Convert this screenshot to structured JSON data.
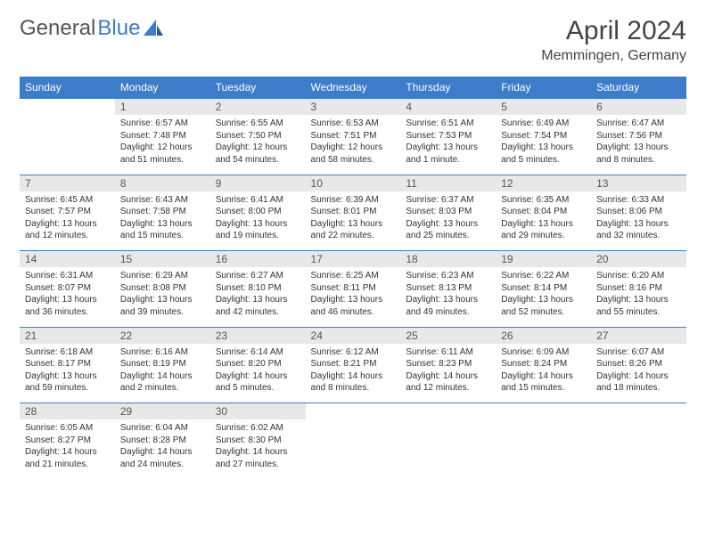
{
  "brand": {
    "part1": "General",
    "part2": "Blue"
  },
  "title": "April 2024",
  "location": "Memmingen, Germany",
  "colors": {
    "header_bg": "#3d7cc9",
    "header_text": "#ffffff",
    "daynum_bg": "#e8e8e8",
    "text": "#333333",
    "rule": "#3d7cc9"
  },
  "weekdays": [
    "Sunday",
    "Monday",
    "Tuesday",
    "Wednesday",
    "Thursday",
    "Friday",
    "Saturday"
  ],
  "weeks": [
    [
      {
        "n": "",
        "sr": "",
        "ss": "",
        "dl": ""
      },
      {
        "n": "1",
        "sr": "Sunrise: 6:57 AM",
        "ss": "Sunset: 7:48 PM",
        "dl": "Daylight: 12 hours and 51 minutes."
      },
      {
        "n": "2",
        "sr": "Sunrise: 6:55 AM",
        "ss": "Sunset: 7:50 PM",
        "dl": "Daylight: 12 hours and 54 minutes."
      },
      {
        "n": "3",
        "sr": "Sunrise: 6:53 AM",
        "ss": "Sunset: 7:51 PM",
        "dl": "Daylight: 12 hours and 58 minutes."
      },
      {
        "n": "4",
        "sr": "Sunrise: 6:51 AM",
        "ss": "Sunset: 7:53 PM",
        "dl": "Daylight: 13 hours and 1 minute."
      },
      {
        "n": "5",
        "sr": "Sunrise: 6:49 AM",
        "ss": "Sunset: 7:54 PM",
        "dl": "Daylight: 13 hours and 5 minutes."
      },
      {
        "n": "6",
        "sr": "Sunrise: 6:47 AM",
        "ss": "Sunset: 7:56 PM",
        "dl": "Daylight: 13 hours and 8 minutes."
      }
    ],
    [
      {
        "n": "7",
        "sr": "Sunrise: 6:45 AM",
        "ss": "Sunset: 7:57 PM",
        "dl": "Daylight: 13 hours and 12 minutes."
      },
      {
        "n": "8",
        "sr": "Sunrise: 6:43 AM",
        "ss": "Sunset: 7:58 PM",
        "dl": "Daylight: 13 hours and 15 minutes."
      },
      {
        "n": "9",
        "sr": "Sunrise: 6:41 AM",
        "ss": "Sunset: 8:00 PM",
        "dl": "Daylight: 13 hours and 19 minutes."
      },
      {
        "n": "10",
        "sr": "Sunrise: 6:39 AM",
        "ss": "Sunset: 8:01 PM",
        "dl": "Daylight: 13 hours and 22 minutes."
      },
      {
        "n": "11",
        "sr": "Sunrise: 6:37 AM",
        "ss": "Sunset: 8:03 PM",
        "dl": "Daylight: 13 hours and 25 minutes."
      },
      {
        "n": "12",
        "sr": "Sunrise: 6:35 AM",
        "ss": "Sunset: 8:04 PM",
        "dl": "Daylight: 13 hours and 29 minutes."
      },
      {
        "n": "13",
        "sr": "Sunrise: 6:33 AM",
        "ss": "Sunset: 8:06 PM",
        "dl": "Daylight: 13 hours and 32 minutes."
      }
    ],
    [
      {
        "n": "14",
        "sr": "Sunrise: 6:31 AM",
        "ss": "Sunset: 8:07 PM",
        "dl": "Daylight: 13 hours and 36 minutes."
      },
      {
        "n": "15",
        "sr": "Sunrise: 6:29 AM",
        "ss": "Sunset: 8:08 PM",
        "dl": "Daylight: 13 hours and 39 minutes."
      },
      {
        "n": "16",
        "sr": "Sunrise: 6:27 AM",
        "ss": "Sunset: 8:10 PM",
        "dl": "Daylight: 13 hours and 42 minutes."
      },
      {
        "n": "17",
        "sr": "Sunrise: 6:25 AM",
        "ss": "Sunset: 8:11 PM",
        "dl": "Daylight: 13 hours and 46 minutes."
      },
      {
        "n": "18",
        "sr": "Sunrise: 6:23 AM",
        "ss": "Sunset: 8:13 PM",
        "dl": "Daylight: 13 hours and 49 minutes."
      },
      {
        "n": "19",
        "sr": "Sunrise: 6:22 AM",
        "ss": "Sunset: 8:14 PM",
        "dl": "Daylight: 13 hours and 52 minutes."
      },
      {
        "n": "20",
        "sr": "Sunrise: 6:20 AM",
        "ss": "Sunset: 8:16 PM",
        "dl": "Daylight: 13 hours and 55 minutes."
      }
    ],
    [
      {
        "n": "21",
        "sr": "Sunrise: 6:18 AM",
        "ss": "Sunset: 8:17 PM",
        "dl": "Daylight: 13 hours and 59 minutes."
      },
      {
        "n": "22",
        "sr": "Sunrise: 6:16 AM",
        "ss": "Sunset: 8:19 PM",
        "dl": "Daylight: 14 hours and 2 minutes."
      },
      {
        "n": "23",
        "sr": "Sunrise: 6:14 AM",
        "ss": "Sunset: 8:20 PM",
        "dl": "Daylight: 14 hours and 5 minutes."
      },
      {
        "n": "24",
        "sr": "Sunrise: 6:12 AM",
        "ss": "Sunset: 8:21 PM",
        "dl": "Daylight: 14 hours and 8 minutes."
      },
      {
        "n": "25",
        "sr": "Sunrise: 6:11 AM",
        "ss": "Sunset: 8:23 PM",
        "dl": "Daylight: 14 hours and 12 minutes."
      },
      {
        "n": "26",
        "sr": "Sunrise: 6:09 AM",
        "ss": "Sunset: 8:24 PM",
        "dl": "Daylight: 14 hours and 15 minutes."
      },
      {
        "n": "27",
        "sr": "Sunrise: 6:07 AM",
        "ss": "Sunset: 8:26 PM",
        "dl": "Daylight: 14 hours and 18 minutes."
      }
    ],
    [
      {
        "n": "28",
        "sr": "Sunrise: 6:05 AM",
        "ss": "Sunset: 8:27 PM",
        "dl": "Daylight: 14 hours and 21 minutes."
      },
      {
        "n": "29",
        "sr": "Sunrise: 6:04 AM",
        "ss": "Sunset: 8:28 PM",
        "dl": "Daylight: 14 hours and 24 minutes."
      },
      {
        "n": "30",
        "sr": "Sunrise: 6:02 AM",
        "ss": "Sunset: 8:30 PM",
        "dl": "Daylight: 14 hours and 27 minutes."
      },
      {
        "n": "",
        "sr": "",
        "ss": "",
        "dl": ""
      },
      {
        "n": "",
        "sr": "",
        "ss": "",
        "dl": ""
      },
      {
        "n": "",
        "sr": "",
        "ss": "",
        "dl": ""
      },
      {
        "n": "",
        "sr": "",
        "ss": "",
        "dl": ""
      }
    ]
  ]
}
